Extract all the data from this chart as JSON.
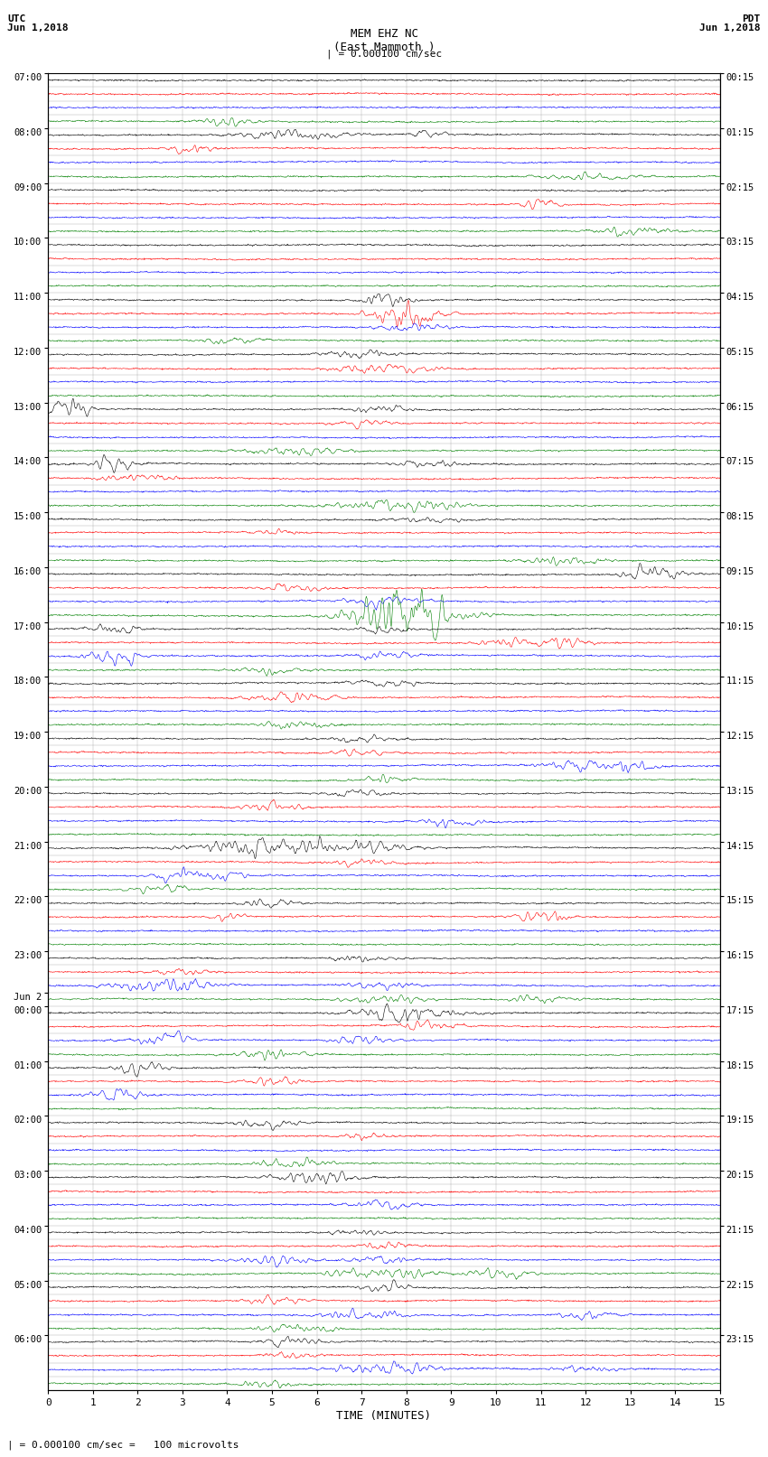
{
  "title_line1": "MEM EHZ NC",
  "title_line2": "(East Mammoth )",
  "title_line3": "| = 0.000100 cm/sec",
  "left_label_top": "UTC",
  "left_label_date": "Jun 1,2018",
  "right_label_top": "PDT",
  "right_label_date": "Jun 1,2018",
  "bottom_label": "TIME (MINUTES)",
  "footnote": "| = 0.000100 cm/sec =   100 microvolts",
  "xlabel_ticks": [
    0,
    1,
    2,
    3,
    4,
    5,
    6,
    7,
    8,
    9,
    10,
    11,
    12,
    13,
    14,
    15
  ],
  "utc_labels": [
    [
      "07:00",
      0
    ],
    [
      "08:00",
      4
    ],
    [
      "09:00",
      8
    ],
    [
      "10:00",
      12
    ],
    [
      "11:00",
      16
    ],
    [
      "12:00",
      20
    ],
    [
      "13:00",
      24
    ],
    [
      "14:00",
      28
    ],
    [
      "15:00",
      32
    ],
    [
      "16:00",
      36
    ],
    [
      "17:00",
      40
    ],
    [
      "18:00",
      44
    ],
    [
      "19:00",
      48
    ],
    [
      "20:00",
      52
    ],
    [
      "21:00",
      56
    ],
    [
      "22:00",
      60
    ],
    [
      "23:00",
      64
    ],
    [
      "Jun 2",
      67
    ],
    [
      "00:00",
      68
    ],
    [
      "01:00",
      72
    ],
    [
      "02:00",
      76
    ],
    [
      "03:00",
      80
    ],
    [
      "04:00",
      84
    ],
    [
      "05:00",
      88
    ],
    [
      "06:00",
      92
    ]
  ],
  "pdt_labels": [
    [
      "00:15",
      0
    ],
    [
      "01:15",
      4
    ],
    [
      "02:15",
      8
    ],
    [
      "03:15",
      12
    ],
    [
      "04:15",
      16
    ],
    [
      "05:15",
      20
    ],
    [
      "06:15",
      24
    ],
    [
      "07:15",
      28
    ],
    [
      "08:15",
      32
    ],
    [
      "09:15",
      36
    ],
    [
      "10:15",
      40
    ],
    [
      "11:15",
      44
    ],
    [
      "12:15",
      48
    ],
    [
      "13:15",
      52
    ],
    [
      "14:15",
      56
    ],
    [
      "15:15",
      60
    ],
    [
      "16:15",
      64
    ],
    [
      "17:15",
      68
    ],
    [
      "18:15",
      72
    ],
    [
      "19:15",
      76
    ],
    [
      "20:15",
      80
    ],
    [
      "21:15",
      84
    ],
    [
      "22:15",
      88
    ],
    [
      "23:15",
      92
    ]
  ],
  "n_rows": 96,
  "colors_cycle": [
    "black",
    "red",
    "blue",
    "green"
  ],
  "bg_color": "white",
  "grid_color": "#999999",
  "trace_amplitude": 0.35,
  "trace_linewidth": 0.4
}
